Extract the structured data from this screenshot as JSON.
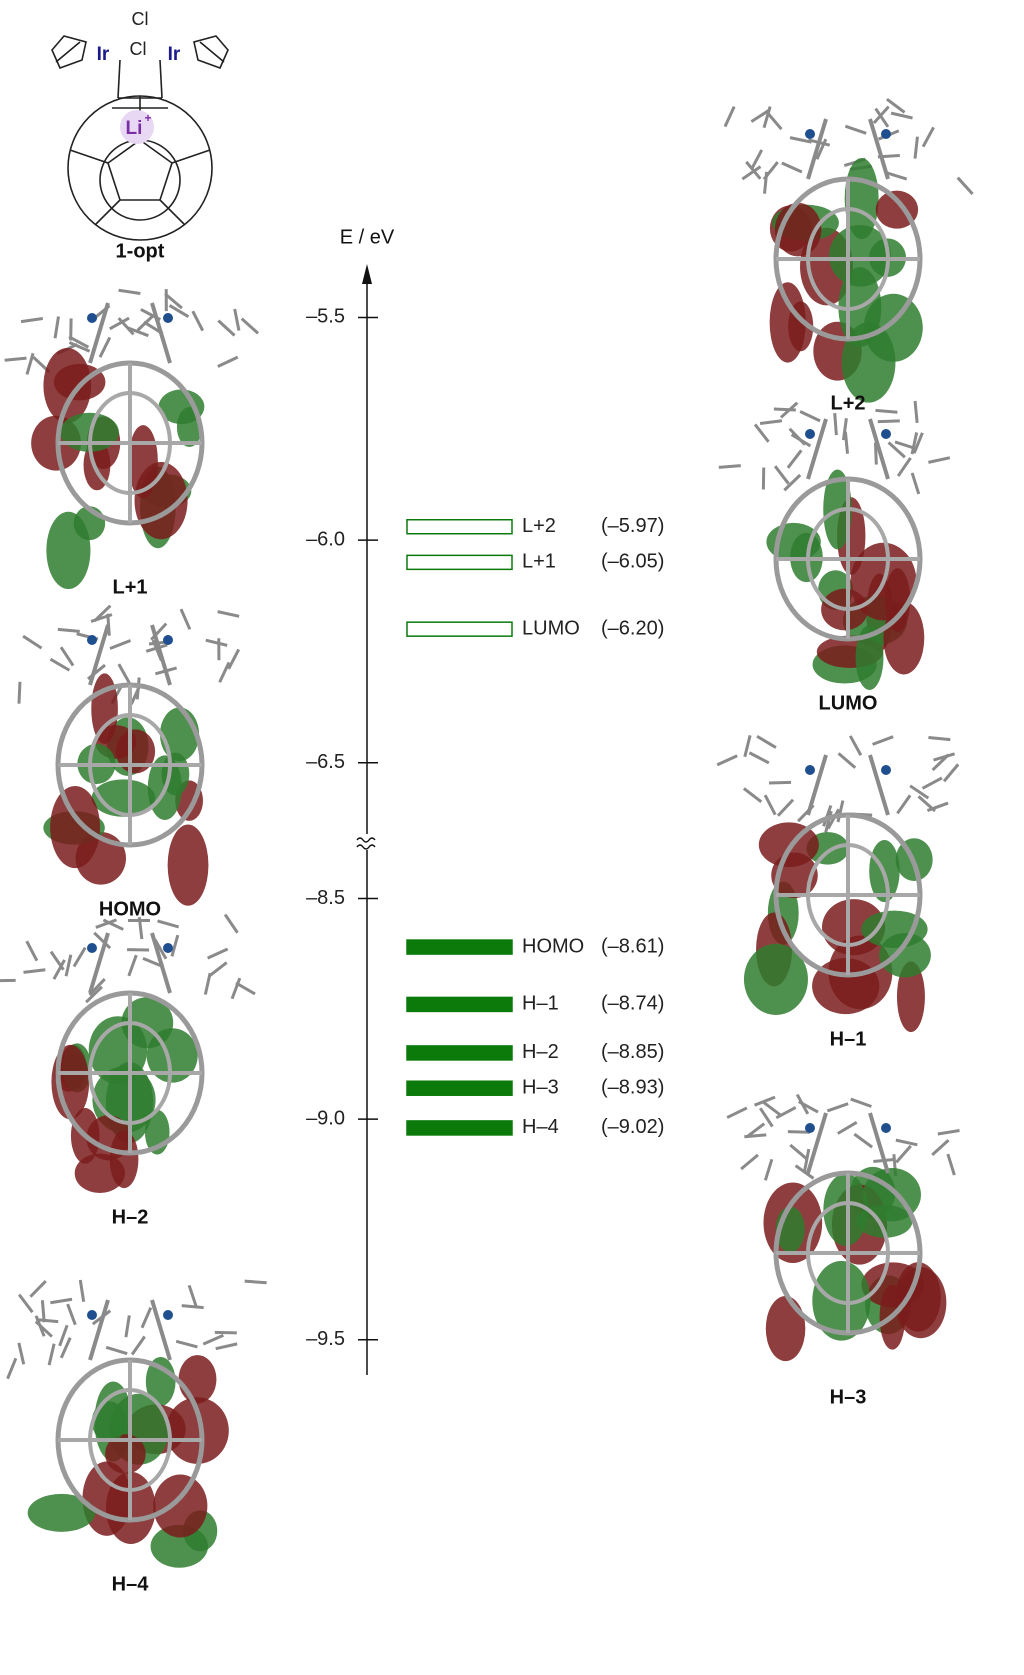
{
  "chart_data": {
    "type": "energy-level",
    "y_label": "E / eV",
    "color": "#0b7a0b",
    "segments": [
      {
        "ylim": [
          -6.66,
          -5.38
        ],
        "yticks": [
          {
            "value": -5.5,
            "label": "–5.5"
          },
          {
            "value": -6.0,
            "label": "–6.0"
          },
          {
            "value": -6.5,
            "label": "–6.5"
          }
        ]
      },
      {
        "ylim": [
          -9.58,
          -8.39
        ],
        "yticks": [
          {
            "value": -8.5,
            "label": "–8.5"
          },
          {
            "value": -9.0,
            "label": "–9.0"
          },
          {
            "value": -9.5,
            "label": "–9.5"
          }
        ]
      }
    ],
    "levels": [
      {
        "label": "L+2",
        "value": -5.97,
        "value_label": "(–5.97)",
        "occupied": false
      },
      {
        "label": "L+1",
        "value": -6.05,
        "value_label": "(–6.05)",
        "occupied": false
      },
      {
        "label": "LUMO",
        "value": -6.2,
        "value_label": "(–6.20)",
        "occupied": false
      },
      {
        "label": "HOMO",
        "value": -8.61,
        "value_label": "(–8.61)",
        "occupied": true
      },
      {
        "label": "H–1",
        "value": -8.74,
        "value_label": "(–8.74)",
        "occupied": true
      },
      {
        "label": "H–2",
        "value": -8.85,
        "value_label": "(–8.85)",
        "occupied": true
      },
      {
        "label": "H–3",
        "value": -8.93,
        "value_label": "(–8.93)",
        "occupied": true
      },
      {
        "label": "H–4",
        "value": -9.02,
        "value_label": "(–9.02)",
        "occupied": true
      }
    ]
  },
  "structure": {
    "caption": "1-opt",
    "labels": [
      "Cl",
      "Cl",
      "Ir",
      "Ir",
      "Li",
      "+"
    ]
  },
  "orbital_panels": {
    "left": [
      "L+1",
      "HOMO",
      "H–2",
      "H–4"
    ],
    "right": [
      "L+2",
      "LUMO",
      "H–1",
      "H–3"
    ]
  }
}
